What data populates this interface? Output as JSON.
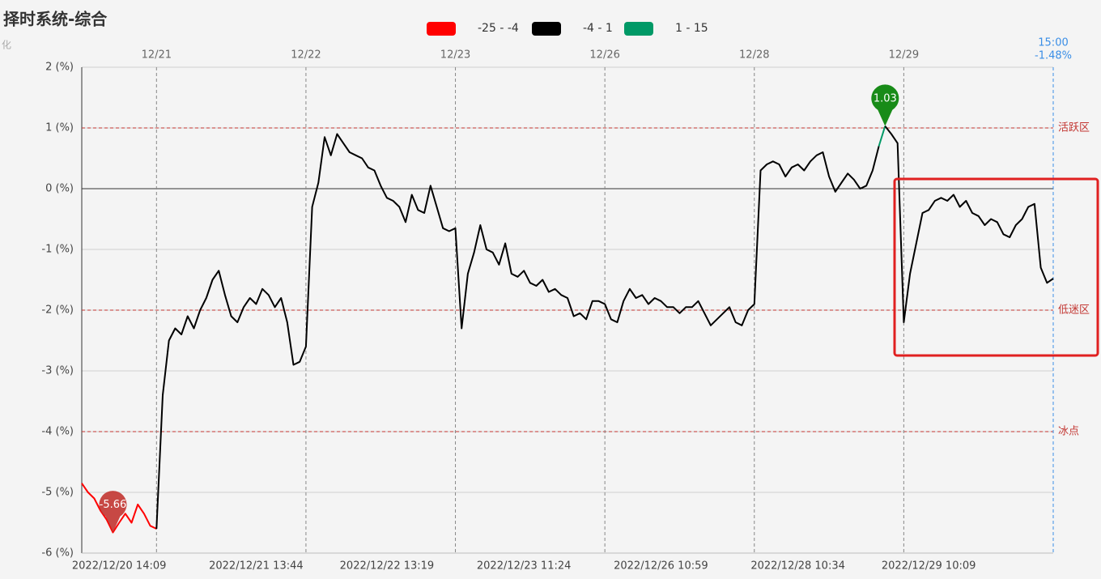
{
  "chart_data": {
    "type": "line",
    "title": "择时系统-综合",
    "subtitle": "化",
    "categories": [
      null,
      null,
      null,
      null,
      null,
      null,
      "2022/12/20 14:09",
      null,
      null,
      null,
      null,
      null,
      null,
      null,
      null,
      null,
      null,
      null,
      null,
      null,
      null,
      null,
      null,
      null,
      null,
      null,
      null,
      null,
      "2022/12/21 13:44",
      null,
      null,
      null,
      null,
      null,
      null,
      null,
      null,
      null,
      null,
      null,
      null,
      null,
      null,
      null,
      null,
      null,
      null,
      null,
      null,
      "2022/12/22 13:19",
      null,
      null,
      null,
      null,
      null,
      null,
      null,
      null,
      null,
      null,
      null,
      null,
      null,
      null,
      null,
      null,
      null,
      null,
      null,
      null,
      null,
      "2022/12/23 11:24",
      null,
      null,
      null,
      null,
      null,
      null,
      null,
      null,
      null,
      null,
      null,
      null,
      null,
      null,
      null,
      null,
      null,
      null,
      null,
      null,
      null,
      "2022/12/26 10:59",
      null,
      null,
      null,
      null,
      null,
      null,
      null,
      null,
      null,
      null,
      null,
      null,
      null,
      null,
      null,
      null,
      null,
      null,
      null,
      null,
      null,
      "2022/12/28 10:34",
      null,
      null,
      null,
      null,
      null,
      null,
      null,
      null,
      null,
      null,
      null,
      null,
      null,
      null,
      null,
      null,
      null,
      null,
      null,
      null,
      "2022/12/29 10:09",
      null,
      null,
      null,
      null,
      null,
      null,
      null,
      null,
      null,
      null,
      null,
      null,
      null,
      null,
      null,
      null,
      null,
      null,
      null,
      null
    ],
    "x2_categories": [
      null,
      null,
      null,
      null,
      null,
      null,
      null,
      null,
      null,
      null,
      null,
      null,
      "12/21",
      null,
      null,
      null,
      null,
      null,
      null,
      null,
      null,
      null,
      null,
      null,
      null,
      null,
      null,
      null,
      null,
      null,
      null,
      null,
      null,
      null,
      null,
      null,
      "12/22",
      null,
      null,
      null,
      null,
      null,
      null,
      null,
      null,
      null,
      null,
      null,
      null,
      null,
      null,
      null,
      null,
      null,
      null,
      null,
      null,
      null,
      null,
      null,
      "12/23",
      null,
      null,
      null,
      null,
      null,
      null,
      null,
      null,
      null,
      null,
      null,
      null,
      null,
      null,
      null,
      null,
      null,
      null,
      null,
      null,
      null,
      null,
      null,
      "12/26",
      null,
      null,
      null,
      null,
      null,
      null,
      null,
      null,
      null,
      null,
      null,
      null,
      null,
      null,
      null,
      null,
      null,
      null,
      null,
      null,
      null,
      null,
      null,
      "12/28",
      null,
      null,
      null,
      null,
      null,
      null,
      null,
      null,
      null,
      null,
      null,
      null,
      null,
      null,
      null,
      null,
      null,
      null,
      null,
      null,
      null,
      null,
      null,
      "12/29",
      null,
      null,
      null,
      null,
      null,
      null,
      null,
      null,
      null,
      null,
      null,
      null,
      null,
      null,
      null,
      null,
      null,
      null,
      null,
      null,
      null,
      null,
      null,
      "15:00"
    ],
    "last_label": "-1.48%",
    "values": [
      -4.85,
      -5.0,
      -5.1,
      -5.3,
      -5.45,
      -5.66,
      -5.5,
      -5.35,
      -5.5,
      -5.2,
      -5.35,
      -5.55,
      -5.6,
      -3.4,
      -2.5,
      -2.3,
      -2.4,
      -2.1,
      -2.3,
      -2.0,
      -1.8,
      -1.5,
      -1.35,
      -1.75,
      -2.1,
      -2.2,
      -1.95,
      -1.8,
      -1.9,
      -1.65,
      -1.75,
      -1.95,
      -1.8,
      -2.2,
      -2.9,
      -2.85,
      -2.6,
      -0.3,
      0.1,
      0.85,
      0.55,
      0.9,
      0.75,
      0.6,
      0.55,
      0.5,
      0.35,
      0.3,
      0.05,
      -0.15,
      -0.2,
      -0.3,
      -0.55,
      -0.1,
      -0.35,
      -0.4,
      0.05,
      -0.3,
      -0.65,
      -0.7,
      -0.65,
      -2.3,
      -1.4,
      -1.05,
      -0.6,
      -1.0,
      -1.05,
      -1.25,
      -0.9,
      -1.4,
      -1.45,
      -1.35,
      -1.55,
      -1.6,
      -1.5,
      -1.7,
      -1.65,
      -1.75,
      -1.8,
      -2.1,
      -2.05,
      -2.15,
      -1.85,
      -1.85,
      -1.9,
      -2.15,
      -2.2,
      -1.85,
      -1.65,
      -1.8,
      -1.75,
      -1.9,
      -1.8,
      -1.85,
      -1.95,
      -1.95,
      -2.05,
      -1.95,
      -1.95,
      -1.85,
      -2.05,
      -2.25,
      -2.15,
      -2.05,
      -1.95,
      -2.2,
      -2.25,
      -2.0,
      -1.9,
      0.3,
      0.4,
      0.45,
      0.4,
      0.2,
      0.35,
      0.4,
      0.3,
      0.45,
      0.55,
      0.6,
      0.2,
      -0.05,
      0.1,
      0.25,
      0.15,
      0.0,
      0.05,
      0.3,
      0.7,
      1.03,
      0.9,
      0.75,
      -2.2,
      -1.4,
      -0.9,
      -0.4,
      -0.35,
      -0.2,
      -0.15,
      -0.2,
      -0.1,
      -0.3,
      -0.2,
      -0.4,
      -0.45,
      -0.6,
      -0.5,
      -0.55,
      -0.75,
      -0.8,
      -0.6,
      -0.5,
      -0.3,
      -0.25,
      -1.3,
      -1.55,
      -1.48
    ],
    "pieces": [
      {
        "min": -25,
        "max": -4,
        "label": "-25 - -4",
        "color": "#ff0000"
      },
      {
        "min": -4,
        "max": 1,
        "label": "-4 - 1",
        "color": "#000000"
      },
      {
        "min": 1,
        "max": 15,
        "label": "1 - 15",
        "color": "#009966"
      }
    ],
    "ylim": [
      -6,
      2
    ],
    "yticks": [
      {
        "value": -6,
        "label": "-6 (%)"
      },
      {
        "value": -5,
        "label": "-5 (%)"
      },
      {
        "value": -4,
        "label": "-4 (%)"
      },
      {
        "value": -3,
        "label": "-3 (%)"
      },
      {
        "value": -2,
        "label": "-2 (%)"
      },
      {
        "value": -1,
        "label": "-1 (%)"
      },
      {
        "value": 0,
        "label": "0 (%)"
      },
      {
        "value": 1,
        "label": "1 (%)"
      },
      {
        "value": 2,
        "label": "2 (%)"
      }
    ],
    "grid": true,
    "mark_lines": [
      {
        "value": 1,
        "label": "活跃区"
      },
      {
        "value": -2,
        "label": "低迷区"
      },
      {
        "value": -4,
        "label": "冰点"
      }
    ],
    "mark_points": [
      {
        "value": -5.66,
        "label": "-5.66",
        "color": "#c23531"
      },
      {
        "value": 1.03,
        "label": "1.03",
        "color": "#008000"
      }
    ]
  }
}
